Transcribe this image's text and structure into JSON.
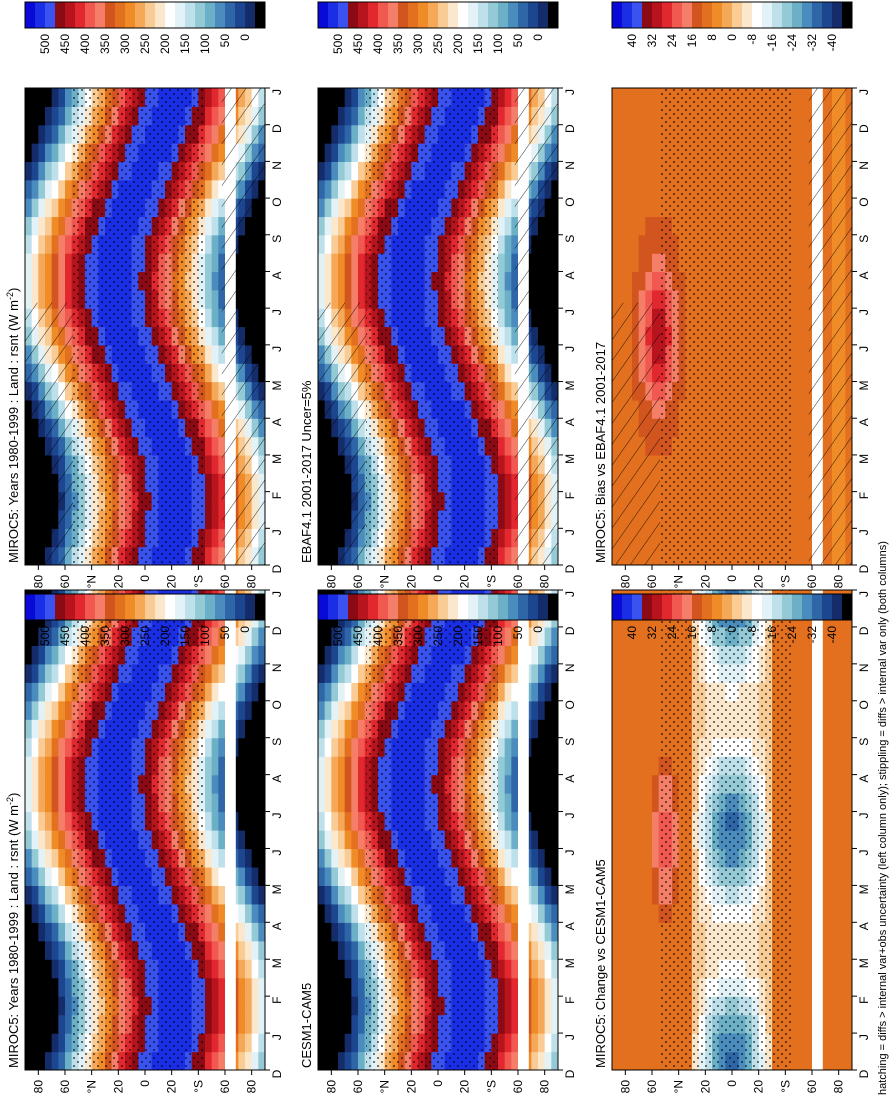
{
  "figure": {
    "footer": "hatching = diffs > internal var+obs uncertainty (left column only); stippling = diffs > internal var only (both columns)"
  },
  "colorbars": {
    "abs": {
      "ticks": [
        "500",
        "450",
        "400",
        "350",
        "300",
        "250",
        "200",
        "150",
        "100",
        "50",
        "0"
      ],
      "colors": [
        "#0a0ad8",
        "#1a2ee6",
        "#3a52f0",
        "#8c0a14",
        "#b8141e",
        "#e0282e",
        "#f05850",
        "#f47e68",
        "#d2541e",
        "#e2701e",
        "#f08c28",
        "#f4a858",
        "#f8cc94",
        "#fbe8cc",
        "#ffffff",
        "#e2f2f6",
        "#bee0ea",
        "#94cad6",
        "#6cb0c8",
        "#4a8cbe",
        "#2e66a8",
        "#1c4690",
        "#142c6a",
        "#000000"
      ]
    },
    "diff": {
      "ticks": [
        "40",
        "32",
        "24",
        "16",
        "8",
        "0",
        "-8",
        "-16",
        "-24",
        "-32",
        "-40"
      ],
      "colors": [
        "#0a0ad8",
        "#1a2ee6",
        "#3a52f0",
        "#8c0a14",
        "#b8141e",
        "#e0282e",
        "#f05850",
        "#f47e68",
        "#d2541e",
        "#e2701e",
        "#f08c28",
        "#f4a858",
        "#f8cc94",
        "#fbe8cc",
        "#ffffff",
        "#e2f2f6",
        "#bee0ea",
        "#94cad6",
        "#6cb0c8",
        "#4a8cbe",
        "#2e66a8",
        "#1c4690",
        "#142c6a",
        "#000000"
      ]
    }
  },
  "chart_data": [
    {
      "type": "heatmap",
      "title": "MIROC5: Years 1980-1999 : Land : rsnt (W m",
      "title_sup": "-2",
      "title_close": ")",
      "x": [
        "D",
        "J",
        "F",
        "M",
        "A",
        "M",
        "J",
        "J",
        "A",
        "S",
        "O",
        "N",
        "D",
        "J"
      ],
      "y": [
        "80",
        "60",
        "°N",
        "20",
        "0",
        "20",
        "°S",
        "60",
        "80"
      ],
      "colorbar": "abs",
      "hatching": true,
      "stippling": true
    },
    {
      "type": "heatmap",
      "title": "EBAF4.1 2001-2017 Uncer=5%",
      "x": [
        "D",
        "J",
        "F",
        "M",
        "A",
        "M",
        "J",
        "J",
        "A",
        "S",
        "O",
        "N",
        "D",
        "J"
      ],
      "y": [
        "80",
        "60",
        "°N",
        "20",
        "0",
        "20",
        "°S",
        "60",
        "80"
      ],
      "colorbar": "abs",
      "hatching": true,
      "stippling": true
    },
    {
      "type": "heatmap",
      "title": "MIROC5: Bias vs EBAF4.1 2001-2017",
      "x": [
        "D",
        "J",
        "F",
        "M",
        "A",
        "M",
        "J",
        "J",
        "A",
        "S",
        "O",
        "N",
        "D",
        "J"
      ],
      "y": [
        "80",
        "60",
        "°N",
        "20",
        "0",
        "20",
        "°S",
        "60",
        "80"
      ],
      "colorbar": "diff",
      "hatching": true,
      "stippling": true
    },
    {
      "type": "heatmap",
      "title": "MIROC5: Years 1980-1999 : Land : rsnt (W m",
      "title_sup": "-2",
      "title_close": ")",
      "x": [
        "D",
        "J",
        "F",
        "M",
        "A",
        "M",
        "J",
        "J",
        "A",
        "S",
        "O",
        "N",
        "D",
        "J"
      ],
      "y": [
        "80",
        "60",
        "°N",
        "20",
        "0",
        "20",
        "°S",
        "60",
        "80"
      ],
      "colorbar": "abs",
      "hatching": false,
      "stippling": true
    },
    {
      "type": "heatmap",
      "title": "CESM1-CAM5",
      "x": [
        "D",
        "J",
        "F",
        "M",
        "A",
        "M",
        "J",
        "J",
        "A",
        "S",
        "O",
        "N",
        "D",
        "J"
      ],
      "y": [
        "80",
        "60",
        "°N",
        "20",
        "0",
        "20",
        "°S",
        "60",
        "80"
      ],
      "colorbar": "abs",
      "hatching": false,
      "stippling": true
    },
    {
      "type": "heatmap",
      "title": "MIROC5: Change vs CESM1-CAM5",
      "x": [
        "D",
        "J",
        "F",
        "M",
        "A",
        "M",
        "J",
        "J",
        "A",
        "S",
        "O",
        "N",
        "D",
        "J"
      ],
      "y": [
        "80",
        "60",
        "°N",
        "20",
        "0",
        "20",
        "°S",
        "60",
        "80"
      ],
      "colorbar": "diff",
      "hatching": false,
      "stippling": true
    }
  ]
}
